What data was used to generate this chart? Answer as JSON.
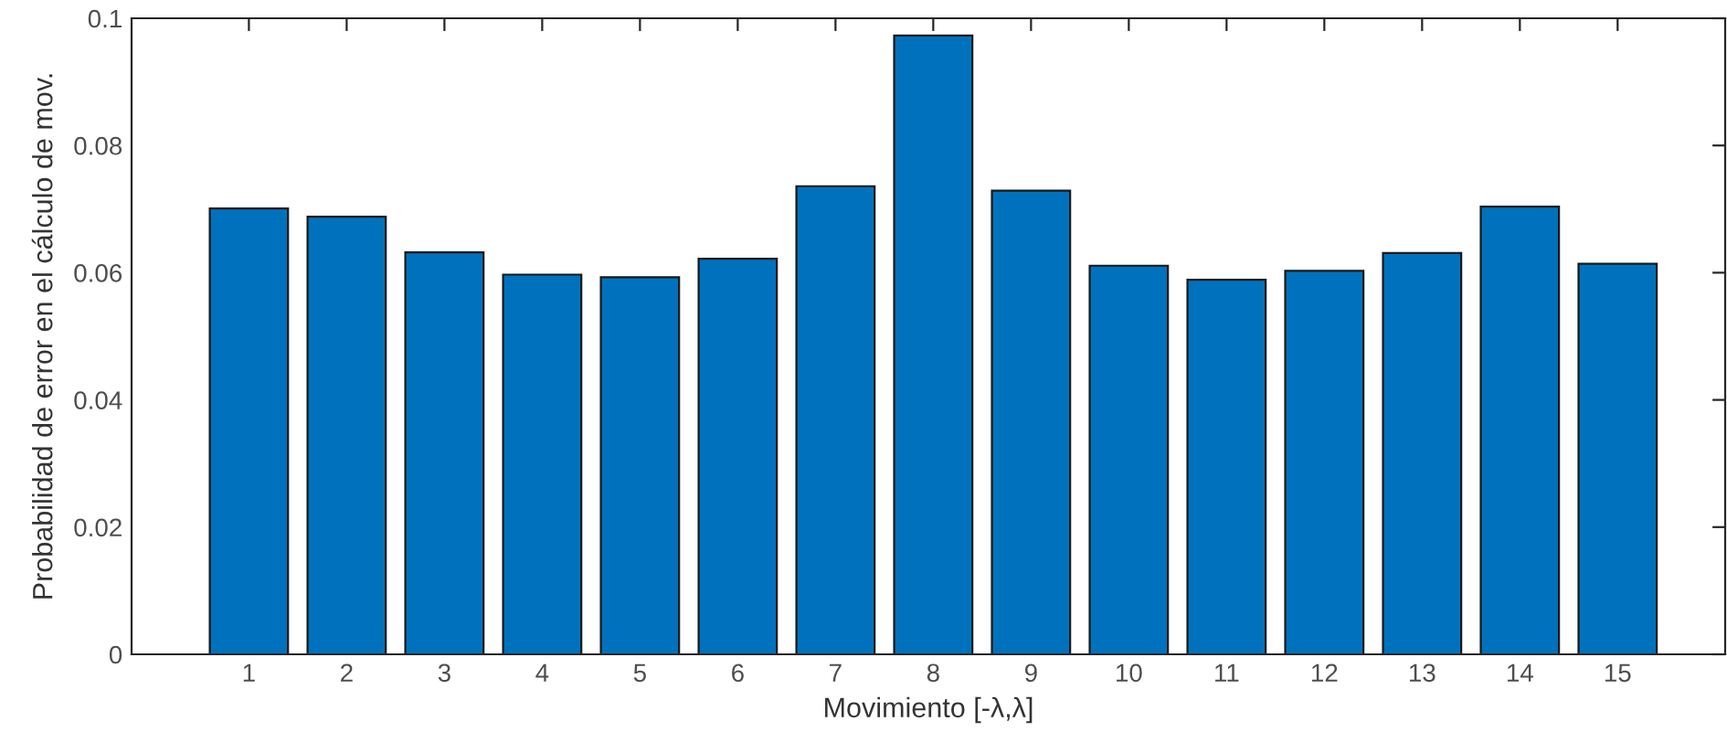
{
  "chart_data": {
    "type": "bar",
    "xlabel": "Movimiento [-λ,λ]",
    "ylabel": "Probabilidad de error en el cálculo de mov.",
    "categories": [
      "1",
      "2",
      "3",
      "4",
      "5",
      "6",
      "7",
      "8",
      "9",
      "10",
      "11",
      "12",
      "13",
      "14",
      "15"
    ],
    "values": [
      0.0701,
      0.0688,
      0.0632,
      0.0597,
      0.0593,
      0.0622,
      0.0736,
      0.0973,
      0.0729,
      0.0611,
      0.0589,
      0.0603,
      0.0631,
      0.0704,
      0.0614
    ],
    "color": "#0072bd",
    "ylim": [
      0,
      0.1
    ],
    "yticks": [
      0,
      0.02,
      0.04,
      0.06,
      0.08,
      0.1
    ],
    "grid": false,
    "legend": false
  }
}
